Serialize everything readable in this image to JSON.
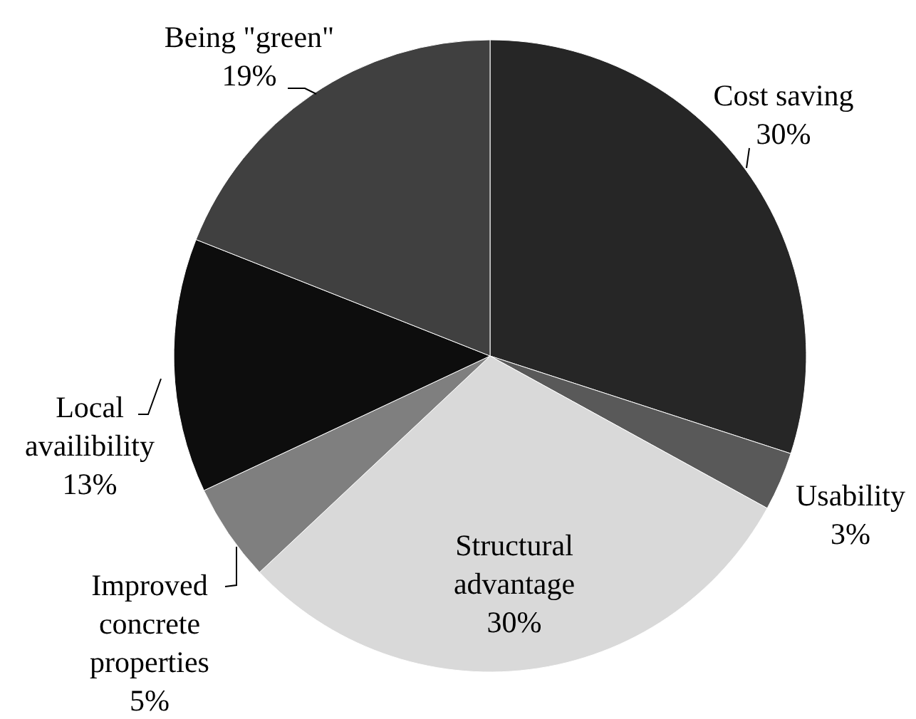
{
  "chart_data": {
    "type": "pie",
    "categories": [
      "Cost saving",
      "Usability",
      "Structural advantage",
      "Improved concrete properties",
      "Local availibility",
      "Being \"green\""
    ],
    "values": [
      30,
      3,
      30,
      5,
      13,
      19
    ],
    "colors": [
      "#262626",
      "#595959",
      "#d9d9d9",
      "#7f7f7f",
      "#0d0d0d",
      "#404040"
    ],
    "value_labels": [
      "30%",
      "3%",
      "30%",
      "5%",
      "13%",
      "19%"
    ]
  }
}
